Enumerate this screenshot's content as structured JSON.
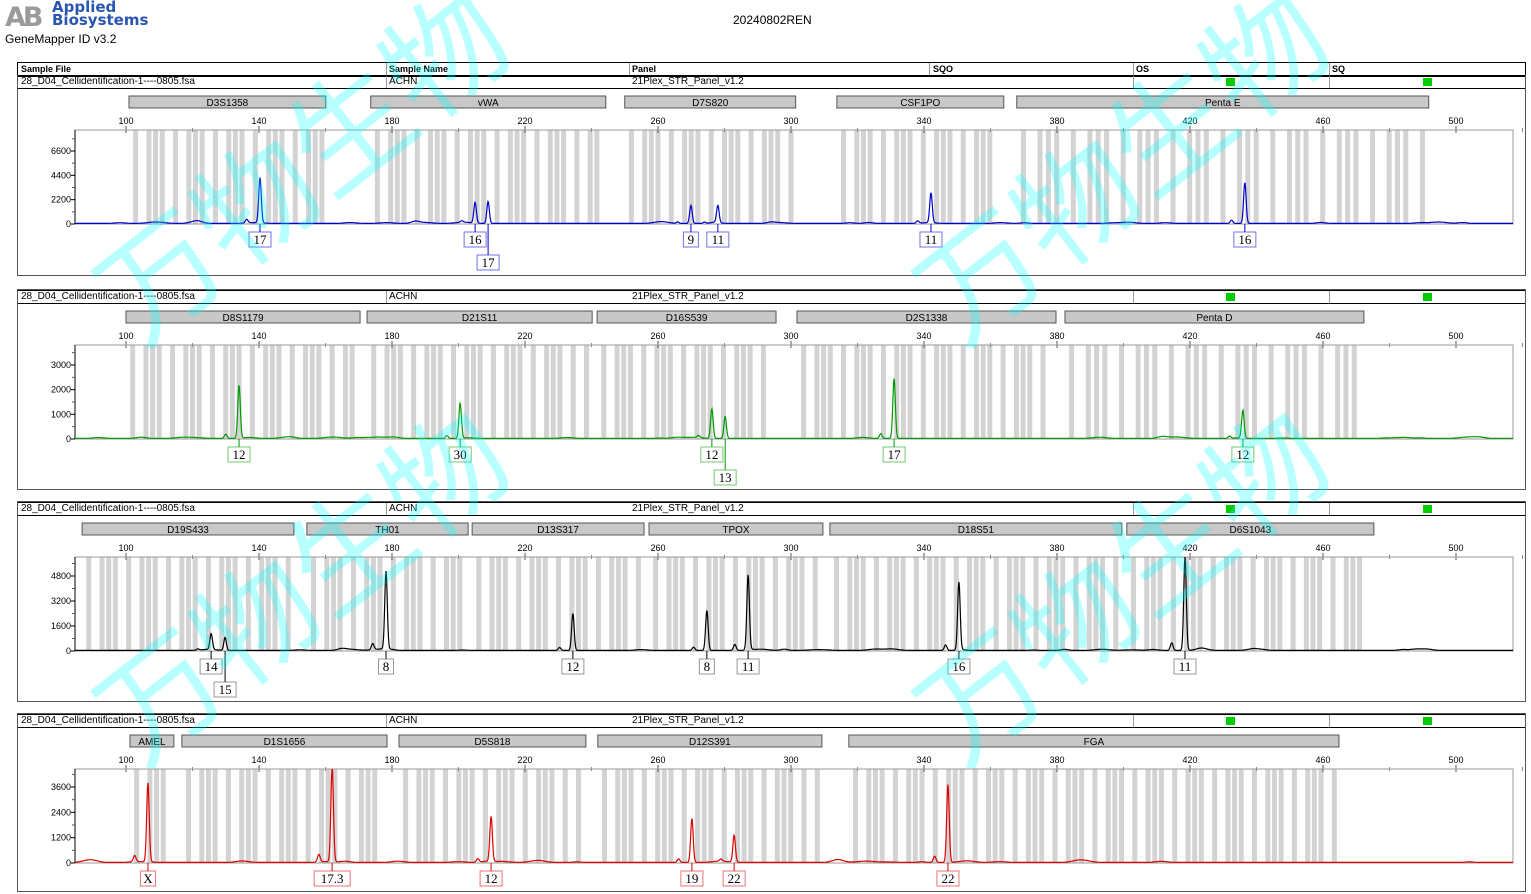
{
  "logo": {
    "mark": "AB",
    "line1": "Applied",
    "line2": "Biosystems"
  },
  "app_version": "GeneMapper ID v3.2",
  "report_title": "20240802REN",
  "columns": [
    "Sample File",
    "Sample Name",
    "Panel",
    "SQO",
    "OS",
    "SQ"
  ],
  "watermark": "万物生物",
  "colors": {
    "blue": "#0000cc",
    "green": "#009900",
    "black": "#000000",
    "red": "#dd0000",
    "bin": "#d3d3d3",
    "locus": "#c8c8c8",
    "quality_ok": "#00cc00"
  },
  "chart_data": [
    {
      "type": "line",
      "dye": "blue",
      "sample_file": "28_D04_Cellidentification-1----0805.fsa",
      "sample_name": "ACHN",
      "panel": "21Plex_STR_Panel_v1.2",
      "os_flag": "green",
      "sq_flag": "green",
      "x_ticks": [
        "100",
        "140",
        "180",
        "220",
        "260",
        "300",
        "340",
        "380",
        "420",
        "460",
        "500"
      ],
      "y_ticks": [
        "0",
        "2200",
        "4400",
        "6600"
      ],
      "xlim": [
        84.7,
        516
      ],
      "ylim": [
        0,
        8500
      ],
      "loci": [
        {
          "name": "D3S1358",
          "start": 100.9,
          "end": 160.1
        },
        {
          "name": "vWA",
          "start": 173.6,
          "end": 244.3
        },
        {
          "name": "D7S820",
          "start": 250,
          "end": 301.4
        },
        {
          "name": "CSF1PO",
          "start": 313.8,
          "end": 364
        },
        {
          "name": "Penta E",
          "start": 367.9,
          "end": 491.8
        }
      ],
      "peaks": [
        {
          "size": 140.3,
          "height": 4070,
          "allele": "17"
        },
        {
          "size": 205.0,
          "height": 1720,
          "allele": "16"
        },
        {
          "size": 208.9,
          "height": 1990,
          "allele": "17"
        },
        {
          "size": 269.9,
          "height": 1630,
          "allele": "9"
        },
        {
          "size": 278.0,
          "height": 1540,
          "allele": "11"
        },
        {
          "size": 342.1,
          "height": 2710,
          "allele": "11"
        },
        {
          "size": 436.5,
          "height": 3700,
          "allele": "16"
        }
      ]
    },
    {
      "type": "line",
      "dye": "green",
      "sample_file": "28_D04_Cellidentification-1----0805.fsa",
      "sample_name": "ACHN",
      "panel": "21Plex_STR_Panel_v1.2",
      "os_flag": "green",
      "sq_flag": "green",
      "x_ticks": [
        "100",
        "140",
        "180",
        "220",
        "260",
        "300",
        "340",
        "380",
        "420",
        "460",
        "500"
      ],
      "y_ticks": [
        "0",
        "1000",
        "2000",
        "3000"
      ],
      "xlim": [
        84.7,
        516
      ],
      "ylim": [
        0,
        3810
      ],
      "loci": [
        {
          "name": "D8S1179",
          "start": 100,
          "end": 170.4
        },
        {
          "name": "D21S11",
          "start": 172.5,
          "end": 240.2
        },
        {
          "name": "D16S539",
          "start": 241.7,
          "end": 295.5
        },
        {
          "name": "D2S1338",
          "start": 301.8,
          "end": 379.7
        },
        {
          "name": "Penta D",
          "start": 382.4,
          "end": 472.3
        }
      ],
      "peaks": [
        {
          "size": 134.0,
          "height": 2150,
          "allele": "12"
        },
        {
          "size": 200.5,
          "height": 1420,
          "allele": "30"
        },
        {
          "size": 276.2,
          "height": 1135,
          "allele": "12"
        },
        {
          "size": 280.2,
          "height": 890,
          "allele": "13"
        },
        {
          "size": 331.0,
          "height": 2430,
          "allele": "17"
        },
        {
          "size": 435.9,
          "height": 1135,
          "allele": "12"
        }
      ]
    },
    {
      "type": "line",
      "dye": "black",
      "sample_file": "28_D04_Cellidentification-1----0805.fsa",
      "sample_name": "ACHN",
      "panel": "21Plex_STR_Panel_v1.2",
      "os_flag": "green",
      "sq_flag": "green",
      "x_ticks": [
        "100",
        "140",
        "180",
        "220",
        "260",
        "300",
        "340",
        "380",
        "420",
        "460",
        "500"
      ],
      "y_ticks": [
        "0",
        "1600",
        "3200",
        "4800"
      ],
      "xlim": [
        84.7,
        516
      ],
      "ylim": [
        0,
        6016
      ],
      "loci": [
        {
          "name": "D19S433",
          "start": 86.8,
          "end": 150.5
        },
        {
          "name": "TH01",
          "start": 154.4,
          "end": 202.9
        },
        {
          "name": "D13S317",
          "start": 204.1,
          "end": 255.8
        },
        {
          "name": "TPOX",
          "start": 257.3,
          "end": 309.6
        },
        {
          "name": "D18S51",
          "start": 311.7,
          "end": 399.5
        },
        {
          "name": "D6S1043",
          "start": 401,
          "end": 475.3
        }
      ],
      "peaks": [
        {
          "size": 125.6,
          "height": 960,
          "allele": "14"
        },
        {
          "size": 129.8,
          "height": 830,
          "allele": "15"
        },
        {
          "size": 178.2,
          "height": 4990,
          "allele": "8"
        },
        {
          "size": 234.4,
          "height": 2370,
          "allele": "12"
        },
        {
          "size": 274.7,
          "height": 2560,
          "allele": "8"
        },
        {
          "size": 287.1,
          "height": 4800,
          "allele": "11"
        },
        {
          "size": 350.5,
          "height": 4350,
          "allele": "16"
        },
        {
          "size": 418.5,
          "height": 6050,
          "allele": "11"
        }
      ]
    },
    {
      "type": "line",
      "dye": "red",
      "sample_file": "28_D04_Cellidentification-1----0805.fsa",
      "sample_name": "ACHN",
      "panel": "21Plex_STR_Panel_v1.2",
      "os_flag": "green",
      "sq_flag": "green",
      "x_ticks": [
        "100",
        "140",
        "180",
        "220",
        "260",
        "300",
        "340",
        "380",
        "420",
        "460",
        "500"
      ],
      "y_ticks": [
        "0",
        "1200",
        "2400",
        "3600"
      ],
      "xlim": [
        84.7,
        516
      ],
      "ylim": [
        0,
        4453
      ],
      "loci": [
        {
          "name": "AMEL",
          "start": 101.2,
          "end": 114.4
        },
        {
          "name": "D1S1656",
          "start": 116.8,
          "end": 178.5
        },
        {
          "name": "D5S818",
          "start": 182.1,
          "end": 238.3
        },
        {
          "name": "D12S391",
          "start": 241.9,
          "end": 309.3
        },
        {
          "name": "FGA",
          "start": 317.4,
          "end": 464.8
        }
      ],
      "peaks": [
        {
          "size": 106.6,
          "height": 3740,
          "allele": "X"
        },
        {
          "size": 162.0,
          "height": 4500,
          "allele": "17.3"
        },
        {
          "size": 209.8,
          "height": 2130,
          "allele": "12"
        },
        {
          "size": 270.2,
          "height": 2080,
          "allele": "19"
        },
        {
          "size": 282.9,
          "height": 1280,
          "allele": "22"
        },
        {
          "size": 347.2,
          "height": 3690,
          "allele": "22"
        }
      ]
    }
  ]
}
